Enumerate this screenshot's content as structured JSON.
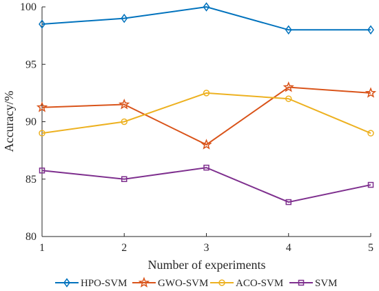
{
  "chart_data": {
    "type": "line",
    "x": [
      1,
      2,
      3,
      4,
      5
    ],
    "xlabel": "Number of experiments",
    "ylabel": "Accuracy/%",
    "xlim": [
      1,
      5
    ],
    "ylim": [
      80,
      100
    ],
    "xticks": [
      "1",
      "2",
      "3",
      "4",
      "5"
    ],
    "yticks": [
      "80",
      "85",
      "90",
      "95",
      "100"
    ],
    "grid": false,
    "legend_position": "bottom",
    "series": [
      {
        "name": "HPO-SVM",
        "values": [
          98.5,
          99.0,
          100.0,
          98.0,
          98.0
        ],
        "color": "#0072BD",
        "marker": "diamond"
      },
      {
        "name": "GWO-SVM",
        "values": [
          91.25,
          91.5,
          88.0,
          93.0,
          92.5
        ],
        "color": "#D95319",
        "marker": "star"
      },
      {
        "name": "ACO-SVM",
        "values": [
          89.0,
          90.0,
          92.5,
          92.0,
          89.0
        ],
        "color": "#EDB120",
        "marker": "circle"
      },
      {
        "name": "SVM",
        "values": [
          85.75,
          85.0,
          86.0,
          83.0,
          84.5
        ],
        "color": "#7E2F8E",
        "marker": "square"
      }
    ]
  }
}
